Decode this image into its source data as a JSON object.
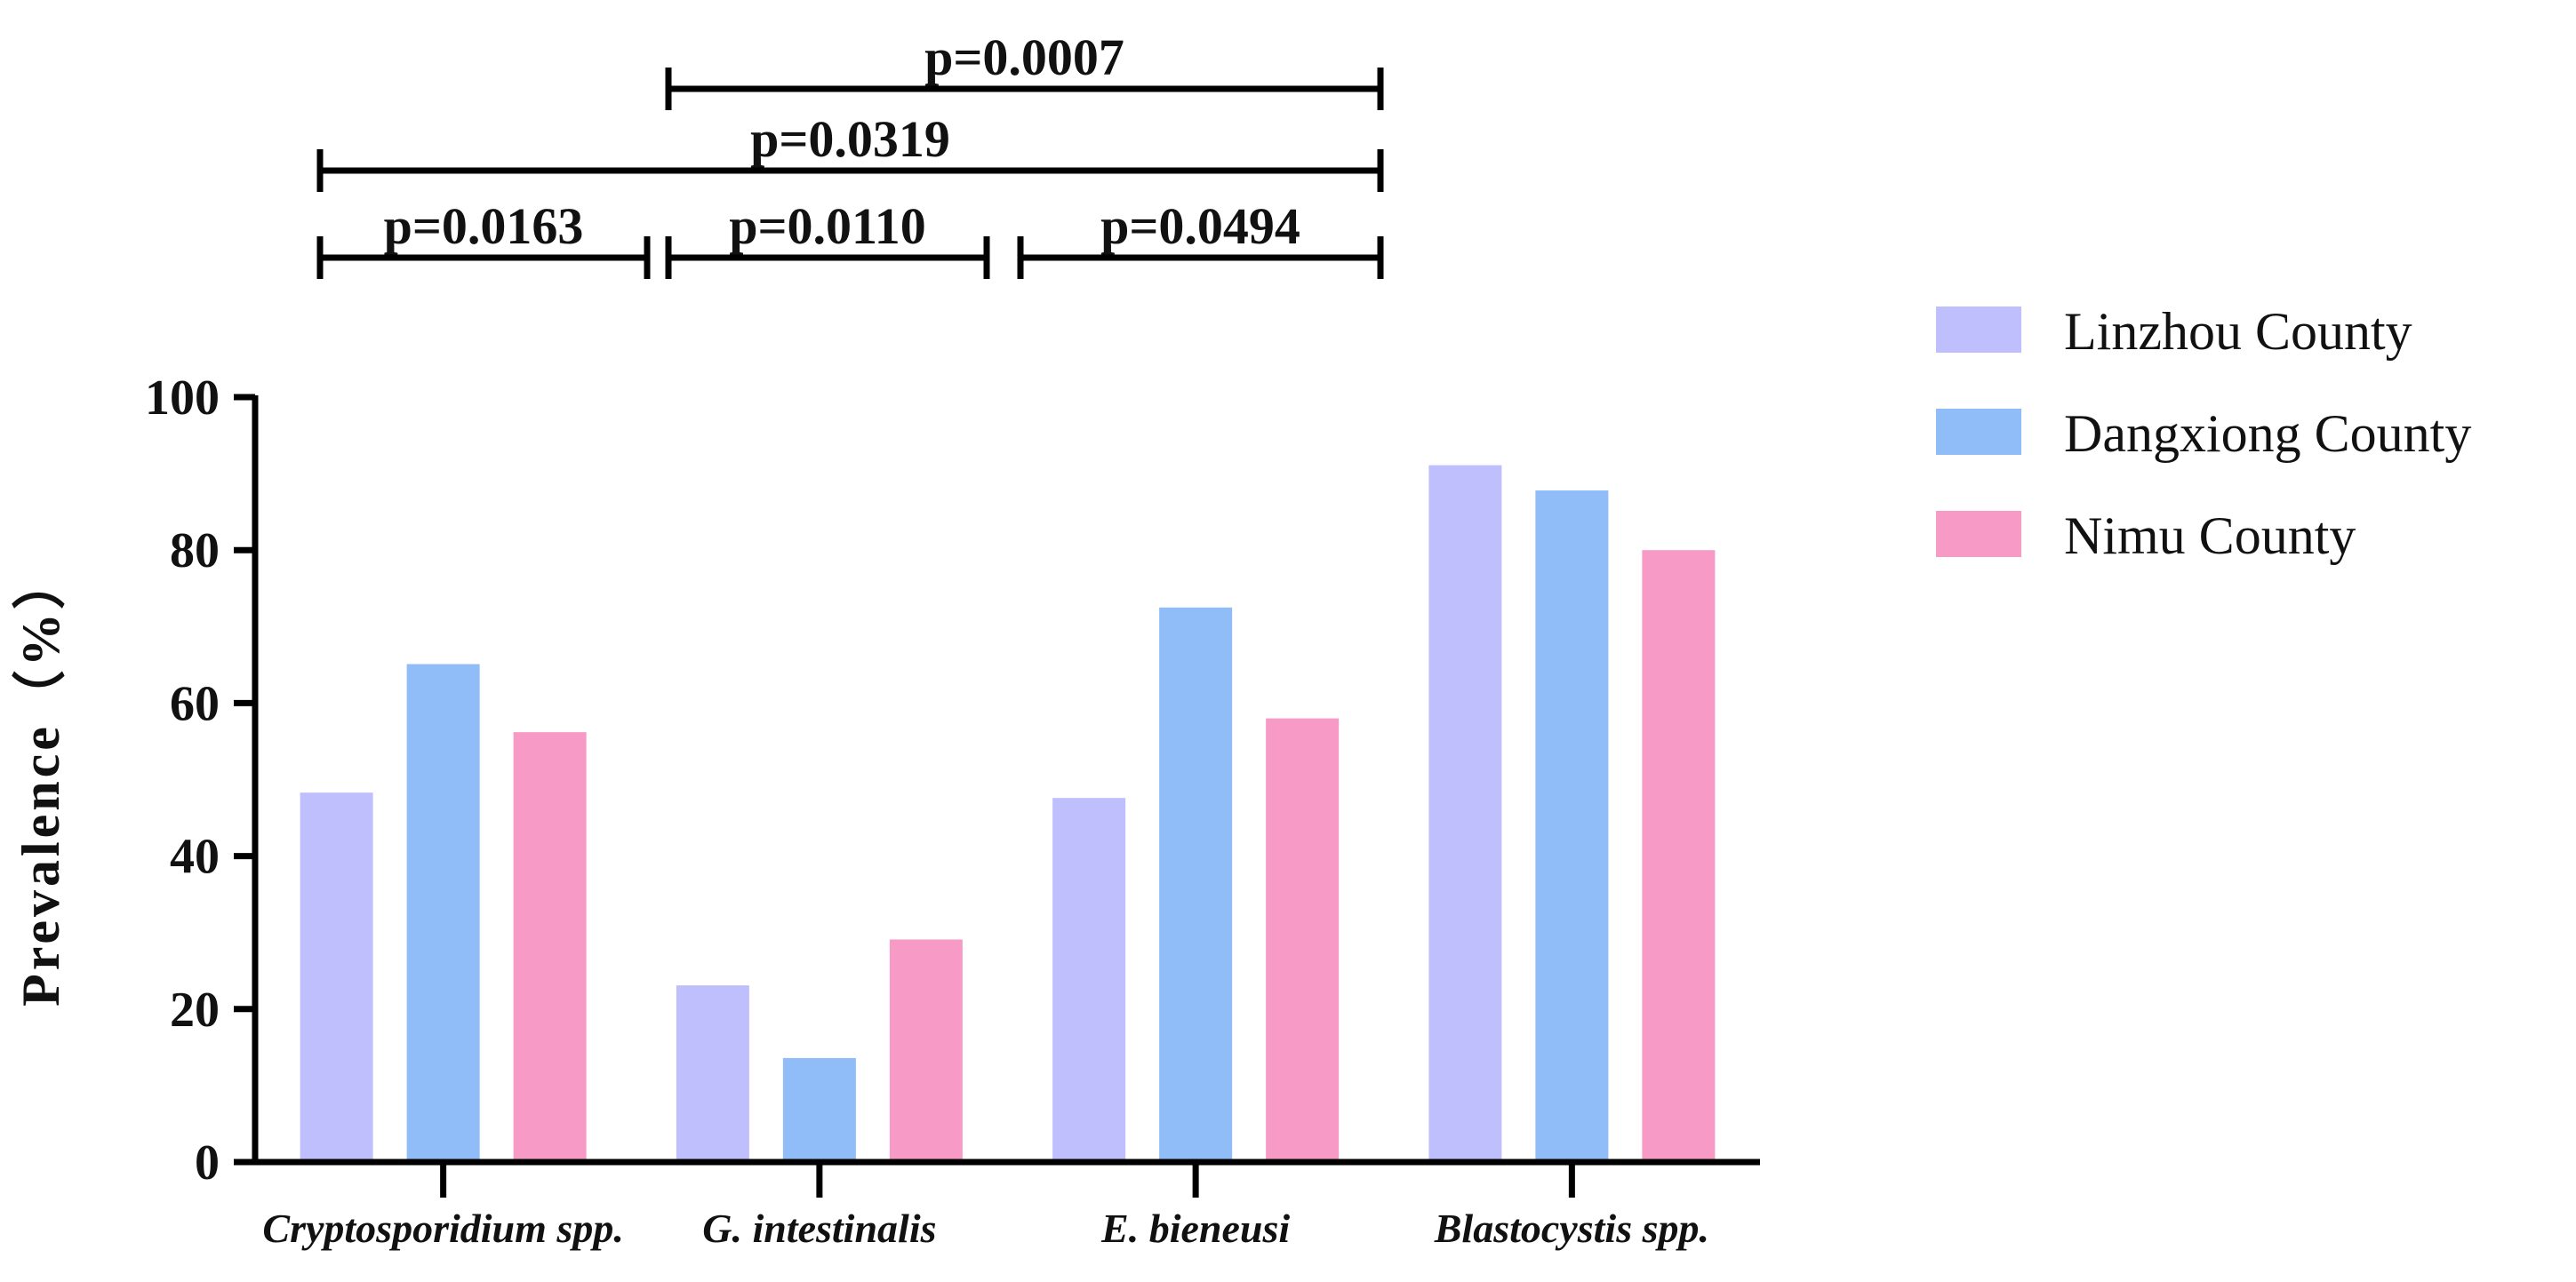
{
  "chart_data": {
    "type": "bar",
    "ylabel": "Prevalence（%）",
    "ylim": [
      0,
      100
    ],
    "yticks": [
      0,
      20,
      40,
      60,
      80,
      100
    ],
    "categories": [
      "Cryptosporidium spp.",
      "G. intestinalis",
      "E. bieneusi",
      "Blastocystis spp."
    ],
    "series": [
      {
        "name": "Linzhou County",
        "color": "#c0bffd",
        "values": [
          48.3,
          23.1,
          47.6,
          91.1
        ]
      },
      {
        "name": "Dangxiong County",
        "color": "#90bdf8",
        "values": [
          65.1,
          13.6,
          72.5,
          87.8
        ]
      },
      {
        "name": "Nimu County",
        "color": "#f79bc6",
        "values": [
          56.2,
          29.1,
          58.0,
          80.0
        ]
      }
    ],
    "legend_position": "top-right",
    "significance": [
      {
        "label": "p=0.0007",
        "from_category": 1,
        "to_category": 3,
        "level": 3
      },
      {
        "label": "p=0.0319",
        "from_category": 0,
        "to_category": 3,
        "level": 2
      },
      {
        "label": "p=0.0163",
        "from_category": 0,
        "to_category": 1,
        "level": 1
      },
      {
        "label": "p=0.0110",
        "from_category": 1,
        "to_category": 2,
        "level": 1
      },
      {
        "label": "p=0.0494",
        "from_category": 2,
        "to_category": 3,
        "level": 1
      }
    ]
  }
}
